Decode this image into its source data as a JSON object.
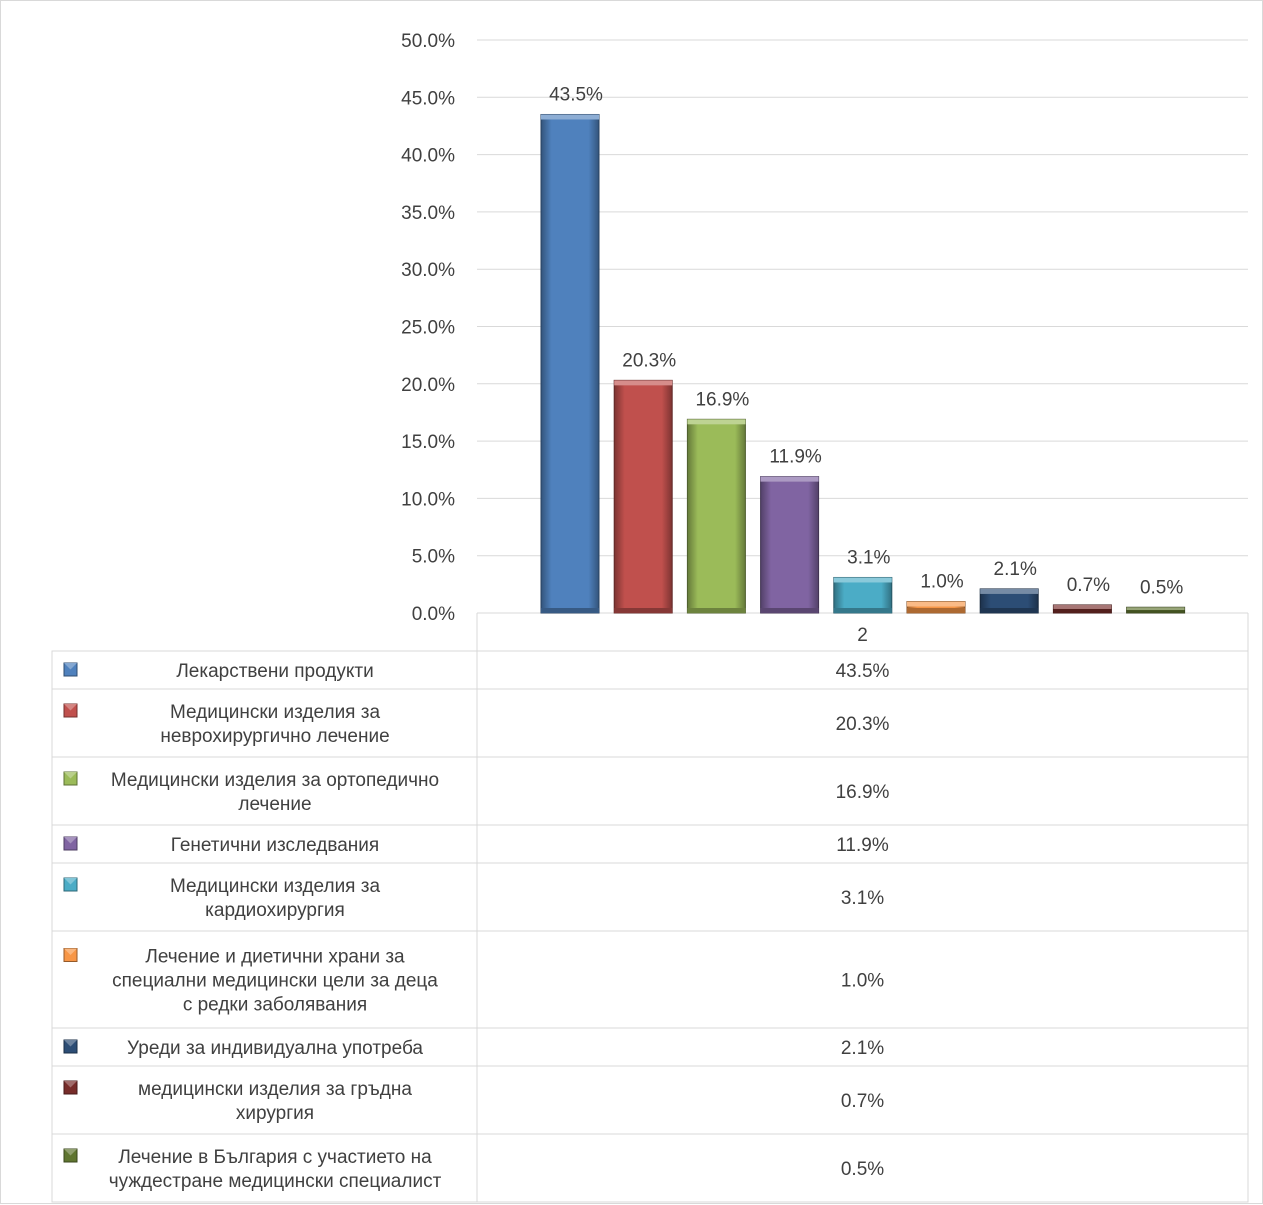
{
  "chart_data": {
    "type": "bar",
    "categories": [
      "2"
    ],
    "series": [
      {
        "name": "Лекарствени продукти",
        "label_lines": [
          "Лекарствени продукти"
        ],
        "value": 43.5,
        "display": "43.5%",
        "color": "#4f81bd"
      },
      {
        "name": "Медицински изделия за неврохирургично лечение",
        "label_lines": [
          "Медицински изделия за",
          "неврохирургично лечение"
        ],
        "value": 20.3,
        "display": "20.3%",
        "color": "#c0504d"
      },
      {
        "name": "Медицински изделия за ортопедично лечение",
        "label_lines": [
          "Медицински изделия за ортопедично",
          "лечение"
        ],
        "value": 16.9,
        "display": "16.9%",
        "color": "#9bbb59"
      },
      {
        "name": "Генетични изследвания",
        "label_lines": [
          "Генетични изследвания"
        ],
        "value": 11.9,
        "display": "11.9%",
        "color": "#8064a2"
      },
      {
        "name": "Медицински изделия за кардиохирургия",
        "label_lines": [
          "Медицински изделия за",
          "кардиохирургия"
        ],
        "value": 3.1,
        "display": "3.1%",
        "color": "#4bacc6"
      },
      {
        "name": "Лечение и диетични храни за специални медицински цели за деца с редки заболявания",
        "label_lines": [
          "Лечение и диетични храни за",
          "специални медицински цели за  деца",
          "с редки заболявания"
        ],
        "value": 1.0,
        "display": "1.0%",
        "color": "#f79646"
      },
      {
        "name": "Уреди за индивидуална употреба",
        "label_lines": [
          "Уреди за индивидуална употреба"
        ],
        "value": 2.1,
        "display": "2.1%",
        "color": "#2c4d75"
      },
      {
        "name": "медицински изделия за гръдна хирургия",
        "label_lines": [
          "медицински изделия за гръдна",
          "хирургия"
        ],
        "value": 0.7,
        "display": "0.7%",
        "color": "#772c2a"
      },
      {
        "name": "Лечение в България с участието на чуждестране медицински специалист",
        "label_lines": [
          "Лечение в България с участието на",
          "чуждестране медицински специалист"
        ],
        "value": 0.5,
        "display": "0.5%",
        "color": "#5f7530"
      }
    ],
    "ylim": [
      0,
      50
    ],
    "yticks": [
      "0.0%",
      "5.0%",
      "10.0%",
      "15.0%",
      "20.0%",
      "25.0%",
      "30.0%",
      "35.0%",
      "40.0%",
      "45.0%",
      "50.0%"
    ],
    "grid": true,
    "legend": "data-table"
  }
}
